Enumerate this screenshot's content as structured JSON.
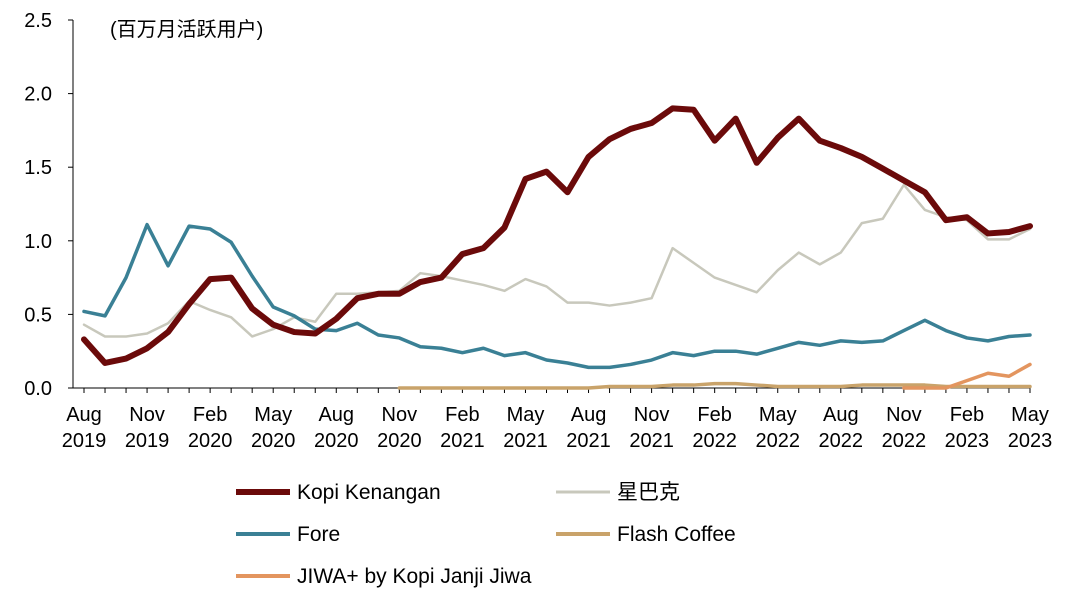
{
  "chart_data": {
    "type": "line",
    "unit_label": "(百万月活跃用户)",
    "ylim": [
      0,
      2.5
    ],
    "yticks": [
      "0.0",
      "0.5",
      "1.0",
      "1.5",
      "2.0",
      "2.5"
    ],
    "x_start": "Aug 2019",
    "x_tick_labels": [
      {
        "month": "Aug",
        "year": "2019"
      },
      {
        "month": "Nov",
        "year": "2019"
      },
      {
        "month": "Feb",
        "year": "2020"
      },
      {
        "month": "May",
        "year": "2020"
      },
      {
        "month": "Aug",
        "year": "2020"
      },
      {
        "month": "Nov",
        "year": "2020"
      },
      {
        "month": "Feb",
        "year": "2021"
      },
      {
        "month": "May",
        "year": "2021"
      },
      {
        "month": "Aug",
        "year": "2021"
      },
      {
        "month": "Nov",
        "year": "2021"
      },
      {
        "month": "Feb",
        "year": "2022"
      },
      {
        "month": "May",
        "year": "2022"
      },
      {
        "month": "Aug",
        "year": "2022"
      },
      {
        "month": "Nov",
        "year": "2022"
      },
      {
        "month": "Feb",
        "year": "2023"
      },
      {
        "month": "May",
        "year": "2023"
      }
    ],
    "series": [
      {
        "name": "Kopi Kenangan",
        "color": "#6b0a0a",
        "values": [
          0.33,
          0.17,
          0.2,
          0.27,
          0.38,
          0.57,
          0.74,
          0.75,
          0.54,
          0.43,
          0.38,
          0.37,
          0.47,
          0.61,
          0.64,
          0.64,
          0.72,
          0.75,
          0.91,
          0.95,
          1.09,
          1.42,
          1.47,
          1.33,
          1.57,
          1.69,
          1.76,
          1.8,
          1.9,
          1.89,
          1.68,
          1.83,
          1.53,
          1.7,
          1.83,
          1.68,
          1.63,
          1.57,
          1.49,
          1.41,
          1.33,
          1.14,
          1.16,
          1.05,
          1.06,
          1.1
        ]
      },
      {
        "name": "星巴克",
        "color": "#c8c8bc",
        "values": [
          0.43,
          0.35,
          0.35,
          0.37,
          0.44,
          0.59,
          0.53,
          0.48,
          0.35,
          0.4,
          0.48,
          0.45,
          0.64,
          0.64,
          0.65,
          0.66,
          0.78,
          0.76,
          0.73,
          0.7,
          0.66,
          0.74,
          0.69,
          0.58,
          0.58,
          0.56,
          0.58,
          0.61,
          0.95,
          0.85,
          0.75,
          0.7,
          0.65,
          0.8,
          0.92,
          0.84,
          0.92,
          1.12,
          1.15,
          1.38,
          1.21,
          1.16,
          1.14,
          1.01,
          1.01,
          1.08
        ]
      },
      {
        "name": "Fore",
        "color": "#3a8095",
        "values": [
          0.52,
          0.49,
          0.75,
          1.11,
          0.83,
          1.1,
          1.08,
          0.99,
          0.76,
          0.55,
          0.49,
          0.4,
          0.39,
          0.44,
          0.36,
          0.34,
          0.28,
          0.27,
          0.24,
          0.27,
          0.22,
          0.24,
          0.19,
          0.17,
          0.14,
          0.14,
          0.16,
          0.19,
          0.24,
          0.22,
          0.25,
          0.25,
          0.23,
          0.27,
          0.31,
          0.29,
          0.32,
          0.31,
          0.32,
          0.39,
          0.46,
          0.39,
          0.34,
          0.32,
          0.35,
          0.36
        ]
      },
      {
        "name": "Flash Coffee",
        "color": "#c9a36a",
        "start_index": 15,
        "values": [
          0.0,
          0.0,
          0.0,
          0.0,
          0.0,
          0.0,
          0.0,
          0.0,
          0.0,
          0.0,
          0.01,
          0.01,
          0.01,
          0.02,
          0.02,
          0.03,
          0.03,
          0.02,
          0.01,
          0.01,
          0.01,
          0.01,
          0.02,
          0.02,
          0.02,
          0.02,
          0.01,
          0.01,
          0.01,
          0.01,
          0.01
        ]
      },
      {
        "name": "JIWA+ by Kopi Janji Jiwa",
        "color": "#e3955f",
        "start_index": 39,
        "values": [
          0.0,
          0.0,
          0.0,
          0.05,
          0.1,
          0.08,
          0.16
        ]
      }
    ]
  },
  "legend": {
    "items": [
      {
        "label": "Kopi Kenangan",
        "color": "#6b0a0a"
      },
      {
        "label": "星巴克",
        "color": "#c8c8bc"
      },
      {
        "label": "Fore",
        "color": "#3a8095"
      },
      {
        "label": "Flash Coffee",
        "color": "#c9a36a"
      },
      {
        "label": "JIWA+ by Kopi Janji Jiwa",
        "color": "#e3955f"
      }
    ]
  }
}
